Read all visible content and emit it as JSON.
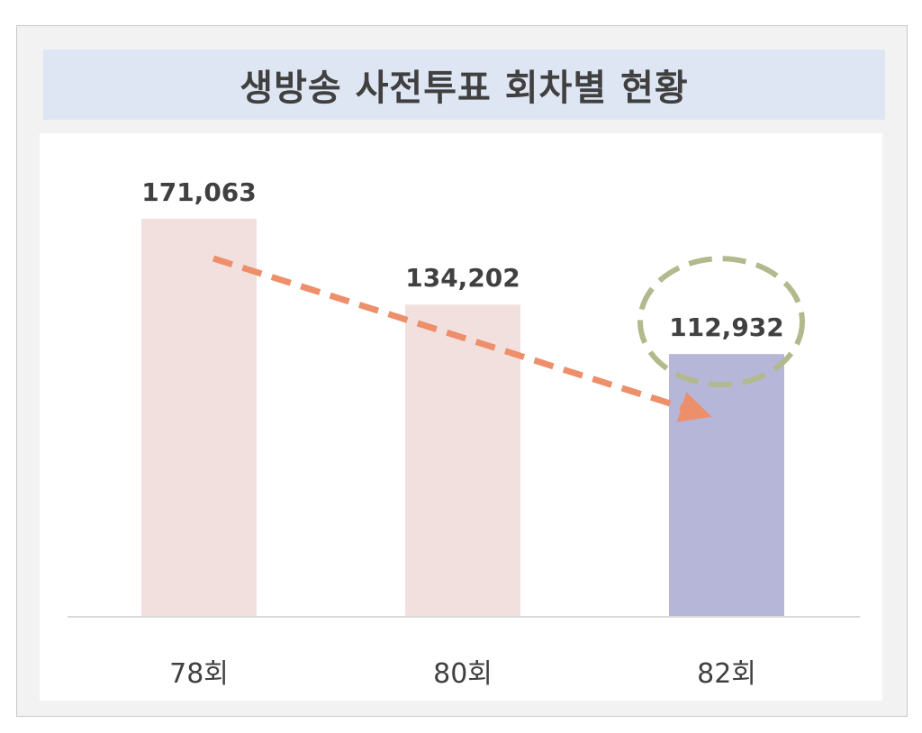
{
  "chart_data": {
    "type": "bar",
    "title": "생방송 사전투표 회차별 현황",
    "categories": [
      "78회",
      "80회",
      "82회"
    ],
    "values": [
      171063,
      134202,
      112932
    ],
    "value_labels": [
      "171,063",
      "134,202",
      "112,932"
    ],
    "ylim": [
      0,
      171063
    ],
    "grid": false,
    "legend": "none",
    "bar_colors": [
      "#f2e0df",
      "#f2e0df",
      "#b6b6d8"
    ],
    "trend_arrow_color": "#ed8f6a",
    "highlight_color": "#b2b98d",
    "highlight_category": "82회",
    "text_color": "#404040"
  }
}
